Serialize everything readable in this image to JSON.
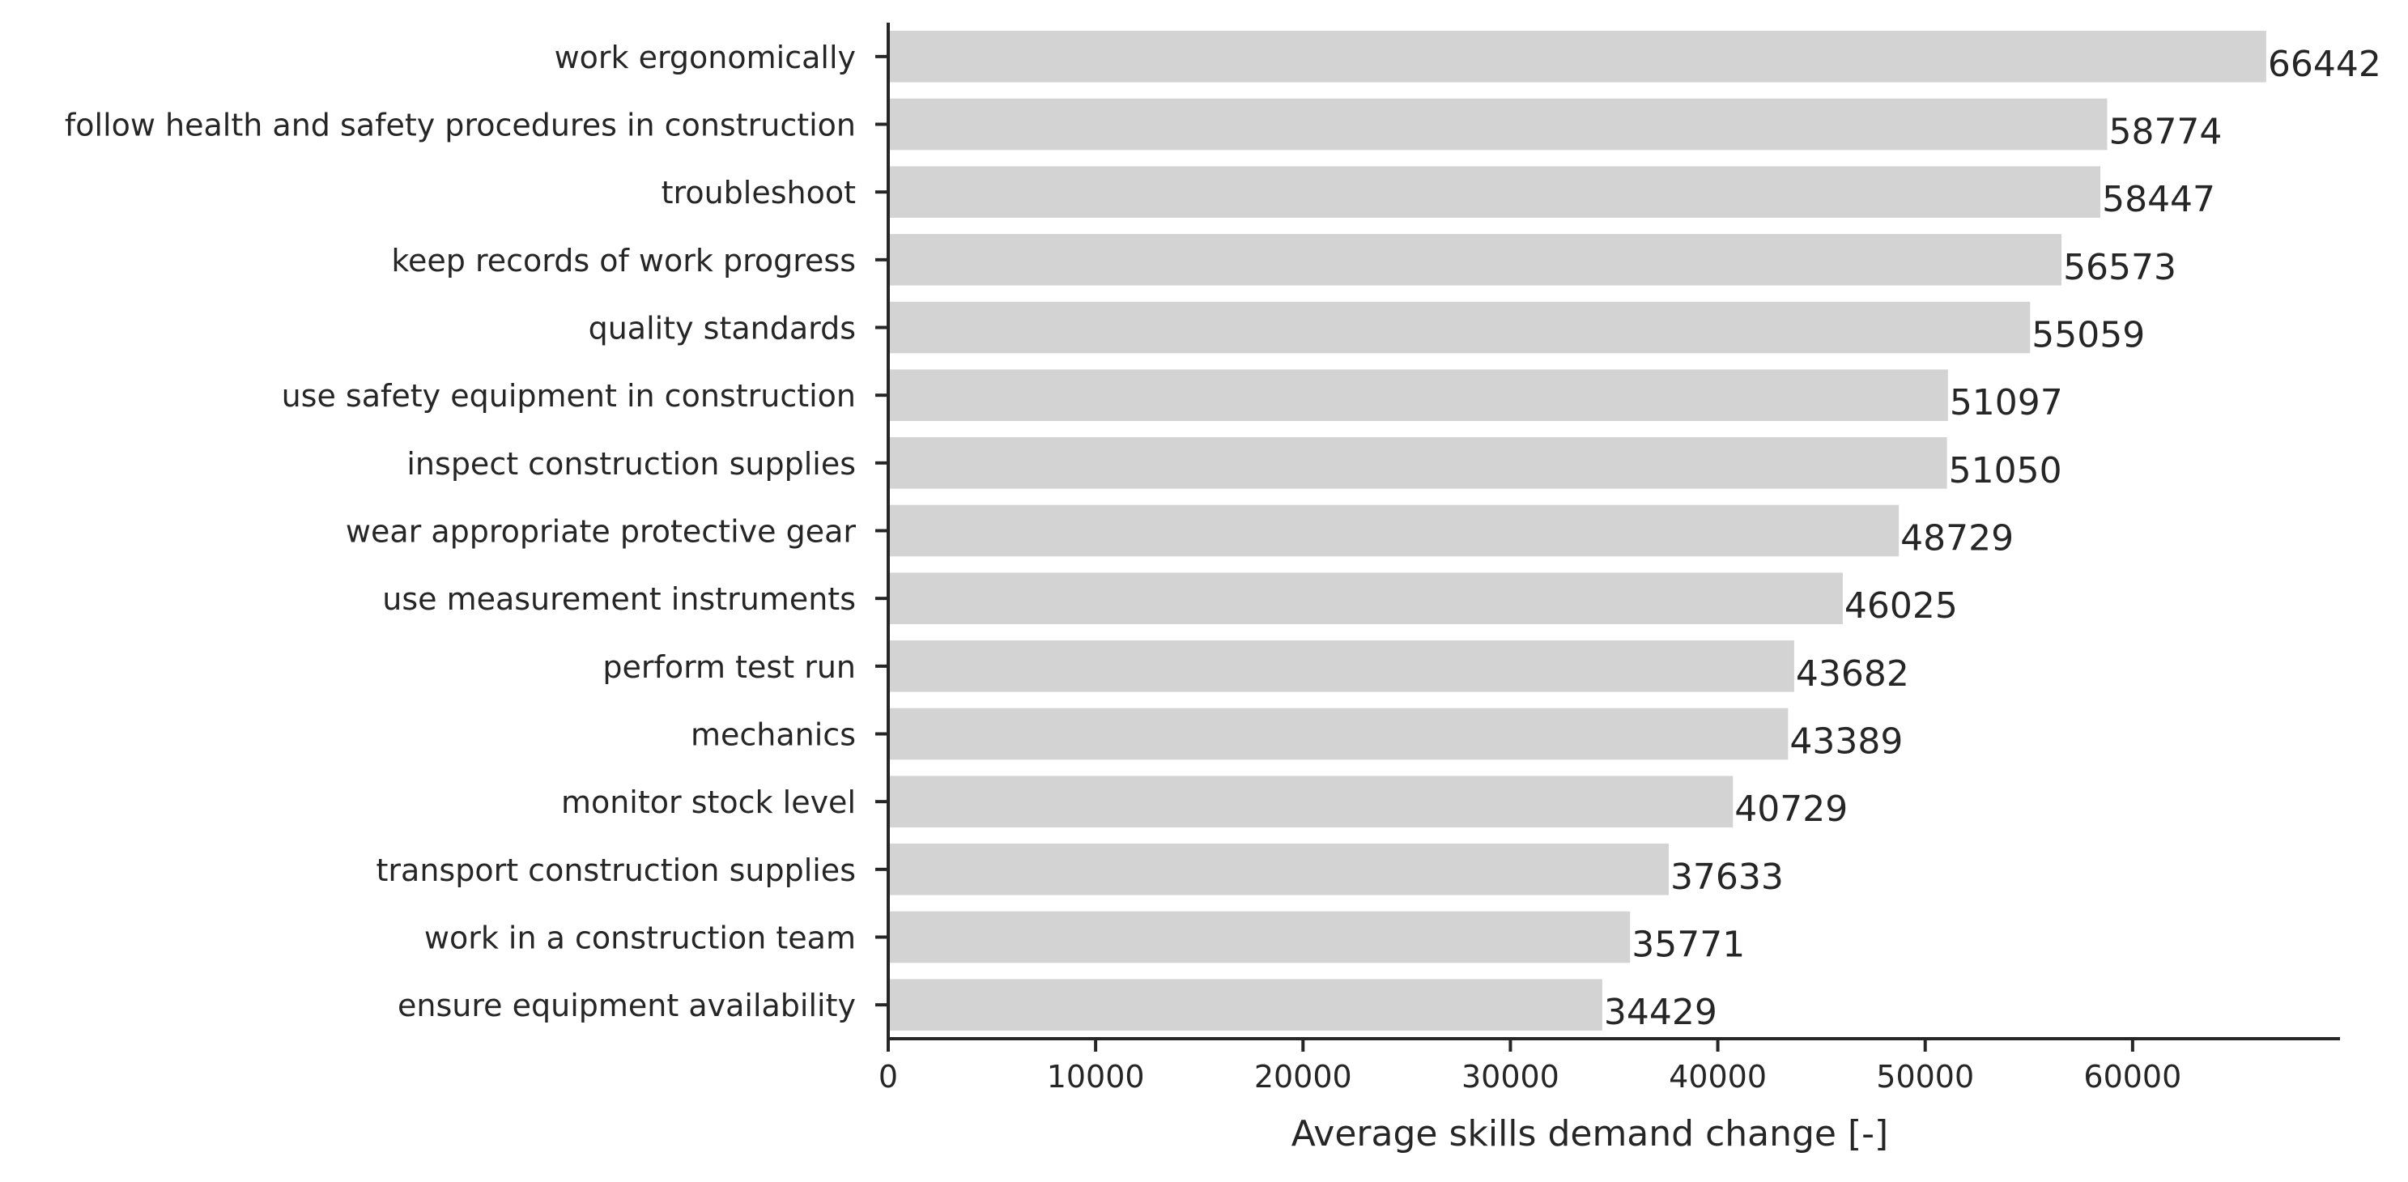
{
  "chart_data": {
    "type": "bar",
    "orientation": "horizontal",
    "title": "",
    "xlabel": "Average skills demand change [-]",
    "ylabel": "",
    "xlim": [
      0,
      70000
    ],
    "x_ticks": [
      0,
      10000,
      20000,
      30000,
      40000,
      50000,
      60000
    ],
    "grid": false,
    "categories": [
      "work ergonomically",
      "follow health and safety procedures in construction",
      "troubleshoot",
      "keep records of work progress",
      "quality standards",
      "use safety equipment in construction",
      "inspect construction supplies",
      "wear appropriate protective gear",
      "use measurement instruments",
      "perform test run",
      "mechanics",
      "monitor stock level",
      "transport construction supplies",
      "work in a construction team",
      "ensure equipment availability"
    ],
    "values": [
      66442,
      58774,
      58447,
      56573,
      55059,
      51097,
      51050,
      48729,
      46025,
      43682,
      43389,
      40729,
      37633,
      35771,
      34429
    ],
    "data_labels": [
      "66442",
      "58774",
      "58447",
      "56573",
      "55059",
      "51097",
      "51050",
      "48729",
      "46025",
      "43682",
      "43389",
      "40729",
      "37633",
      "35771",
      "34429"
    ],
    "bar_color": "#d3d3d3",
    "axis_color": "#262626",
    "text_color": "#262626"
  }
}
